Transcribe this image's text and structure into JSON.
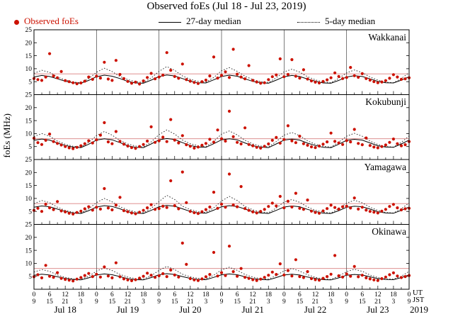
{
  "title": "Observed foEs (Jul 18 - Jul 23, 2019)",
  "legend": {
    "observed": "Observed foEs",
    "median27": "27-day median",
    "median5": "5-day median"
  },
  "ylabel": "foEs (MHz)",
  "axis": {
    "ut_label": "UT",
    "jst_label": "JST",
    "year": "2019"
  },
  "colors": {
    "dot": "#cc1100",
    "line": "#000000",
    "threshold": "#d98080"
  },
  "chart_data": {
    "type": "scatter",
    "title": "Observed foEs (Jul 18 - Jul 23, 2019)",
    "ylabel": "foEs (MHz)",
    "ylim": [
      0,
      25
    ],
    "yticks": [
      5,
      10,
      15,
      20,
      25
    ],
    "xlim": [
      0,
      144
    ],
    "x_tick_step_hours": 6,
    "x_minor_tick_hours": 3,
    "ut_tick_labels": [
      "0",
      "6",
      "12",
      "18"
    ],
    "jst_tick_labels": [
      "9",
      "15",
      "21",
      "3"
    ],
    "day_labels": [
      "Jul 18",
      "Jul 19",
      "Jul 20",
      "Jul 21",
      "Jul 22",
      "Jul 23"
    ],
    "day_boundaries": [
      24,
      48,
      72,
      96,
      120
    ],
    "red_line": 8,
    "panels": [
      {
        "name": "Wakkanai",
        "observed": {
          "x_start": 0,
          "x_step": 1.5,
          "y": [
            6.2,
            5.8,
            5.5,
            6.8,
            15.8,
            7.2,
            6.5,
            8.9,
            5.4,
            5.0,
            4.6,
            4.2,
            4.5,
            5.2,
            6.8,
            5.9,
            7.1,
            6.4,
            12.5,
            6.0,
            5.5,
            13.2,
            7.8,
            6.2,
            5.1,
            4.4,
            4.8,
            4.1,
            5.3,
            6.6,
            8.2,
            6.1,
            6.8,
            7.5,
            16.2,
            9.4,
            7.0,
            6.3,
            11.8,
            5.8,
            5.2,
            4.7,
            4.3,
            5.0,
            5.6,
            7.2,
            14.5,
            6.4,
            7.4,
            8.8,
            6.6,
            17.5,
            7.9,
            6.8,
            6.1,
            11.2,
            5.5,
            4.9,
            4.4,
            4.6,
            5.8,
            6.9,
            7.6,
            13.8,
            6.9,
            7.8,
            13.5,
            7.1,
            6.4,
            9.6,
            6.0,
            5.3,
            4.8,
            4.5,
            5.1,
            5.7,
            6.5,
            8.4,
            7.0,
            6.2,
            6.6,
            10.5,
            7.3,
            6.7,
            8.1,
            6.2,
            5.6,
            5.0,
            4.6,
            4.9,
            5.4,
            6.3,
            7.7,
            6.8,
            5.9,
            6.1,
            6.5
          ]
        },
        "median27": {
          "x_start": 0,
          "x_step": 3,
          "y": [
            6.8,
            7.4,
            7.0,
            6.1,
            5.2,
            4.6,
            4.4,
            5.5,
            6.9,
            7.5,
            7.1,
            6.2,
            5.1,
            4.5,
            4.4,
            5.6,
            7.0,
            7.6,
            7.2,
            6.2,
            5.2,
            4.6,
            4.5,
            5.7,
            7.0,
            7.5,
            7.1,
            6.1,
            5.1,
            4.6,
            4.4,
            5.6,
            6.9,
            7.4,
            7.0,
            6.0,
            5.2,
            4.5,
            4.4,
            5.5,
            6.8,
            7.3,
            7.0,
            6.1,
            5.1,
            4.6,
            4.5,
            5.6,
            6.9
          ]
        },
        "median5": {
          "x_start": 0,
          "x_step": 3,
          "y": [
            8.2,
            9.4,
            8.6,
            6.8,
            5.6,
            4.9,
            4.6,
            6.2,
            8.6,
            10.2,
            8.9,
            7.0,
            5.8,
            5.0,
            4.7,
            6.4,
            9.0,
            10.8,
            9.4,
            7.2,
            5.9,
            5.1,
            4.8,
            6.6,
            9.2,
            10.4,
            9.0,
            7.1,
            5.8,
            5.0,
            4.7,
            6.5,
            8.8,
            9.8,
            8.7,
            6.9,
            5.7,
            4.9,
            4.6,
            6.3,
            8.4,
            9.5,
            8.5,
            6.8,
            5.6,
            4.8,
            4.6,
            6.2,
            8.5
          ]
        }
      },
      {
        "name": "Kokubunji",
        "observed": {
          "x_start": 0,
          "x_step": 1.5,
          "y": [
            8.2,
            6.5,
            5.8,
            7.4,
            9.8,
            6.9,
            6.2,
            5.6,
            5.0,
            4.5,
            4.2,
            4.7,
            5.3,
            6.1,
            7.2,
            6.4,
            7.6,
            9.4,
            14.2,
            6.8,
            6.1,
            10.8,
            7.0,
            5.9,
            5.2,
            4.6,
            4.3,
            5.0,
            5.8,
            7.1,
            12.6,
            6.6,
            7.2,
            8.6,
            6.9,
            15.4,
            7.5,
            6.4,
            9.2,
            5.7,
            5.1,
            4.4,
            4.8,
            5.5,
            6.2,
            7.8,
            6.7,
            11.4,
            8.0,
            7.1,
            18.6,
            8.8,
            6.6,
            6.0,
            12.2,
            5.8,
            5.3,
            4.7,
            4.4,
            5.1,
            6.0,
            7.4,
            8.5,
            6.3,
            7.7,
            13.0,
            7.2,
            6.5,
            9.0,
            6.1,
            5.5,
            4.9,
            4.6,
            5.2,
            5.9,
            6.8,
            10.2,
            7.0,
            6.4,
            5.8,
            7.3,
            6.8,
            11.6,
            6.2,
            5.7,
            8.3,
            5.4,
            4.8,
            4.5,
            5.0,
            5.6,
            6.6,
            7.9,
            6.1,
            5.3,
            5.7,
            6.9
          ]
        },
        "median27": {
          "x_start": 0,
          "x_step": 3,
          "y": [
            7.4,
            7.9,
            7.5,
            6.4,
            5.4,
            4.8,
            4.6,
            5.9,
            7.5,
            8.0,
            7.6,
            6.5,
            5.3,
            4.7,
            4.6,
            6.0,
            7.6,
            8.1,
            7.7,
            6.5,
            5.4,
            4.8,
            4.7,
            6.1,
            7.6,
            8.0,
            7.6,
            6.4,
            5.3,
            4.8,
            4.6,
            6.0,
            7.5,
            7.9,
            7.5,
            6.3,
            5.4,
            4.7,
            4.6,
            5.9,
            7.4,
            7.8,
            7.5,
            6.4,
            5.3,
            4.8,
            4.7,
            6.0,
            7.5
          ]
        },
        "median5": {
          "x_start": 0,
          "x_step": 3,
          "y": [
            8.8,
            10.0,
            9.0,
            7.1,
            5.9,
            5.1,
            4.8,
            6.6,
            9.2,
            10.8,
            9.4,
            7.3,
            6.0,
            5.2,
            4.9,
            6.8,
            9.6,
            11.4,
            9.8,
            7.5,
            6.1,
            5.3,
            5.0,
            7.0,
            9.8,
            11.0,
            9.5,
            7.4,
            6.0,
            5.2,
            4.9,
            6.9,
            9.4,
            10.4,
            9.2,
            7.2,
            5.9,
            5.1,
            4.8,
            6.7,
            9.0,
            10.1,
            9.0,
            7.1,
            5.8,
            5.0,
            4.8,
            6.6,
            9.1
          ]
        }
      },
      {
        "name": "Yamagawa",
        "observed": {
          "x_start": 0,
          "x_step": 1.5,
          "y": [
            5.4,
            6.2,
            5.0,
            7.8,
            6.4,
            5.7,
            8.8,
            5.2,
            4.8,
            4.3,
            4.0,
            4.6,
            5.1,
            6.0,
            6.8,
            5.5,
            6.6,
            5.9,
            13.8,
            6.3,
            5.6,
            7.4,
            10.4,
            5.3,
            4.9,
            4.4,
            4.1,
            4.7,
            5.4,
            6.4,
            7.6,
            5.8,
            6.1,
            7.0,
            6.5,
            16.8,
            7.2,
            6.0,
            20.2,
            8.4,
            5.0,
            4.5,
            4.2,
            4.9,
            5.7,
            6.7,
            12.4,
            6.2,
            7.8,
            6.6,
            19.4,
            7.5,
            6.8,
            14.6,
            6.1,
            5.4,
            4.8,
            4.4,
            5.0,
            5.8,
            6.9,
            8.2,
            7.1,
            10.8,
            6.4,
            8.9,
            6.7,
            12.0,
            6.2,
            5.8,
            9.4,
            5.1,
            4.6,
            4.3,
            5.2,
            6.1,
            7.4,
            6.5,
            5.9,
            6.8,
            7.0,
            6.3,
            10.2,
            5.9,
            6.6,
            5.5,
            5.0,
            4.7,
            4.4,
            5.1,
            5.8,
            6.9,
            7.7,
            6.4,
            5.6,
            6.0,
            6.2
          ]
        },
        "median27": {
          "x_start": 0,
          "x_step": 3,
          "y": [
            6.6,
            7.1,
            6.8,
            5.9,
            5.0,
            4.4,
            4.2,
            5.3,
            6.7,
            7.2,
            6.9,
            6.0,
            4.9,
            4.3,
            4.2,
            5.4,
            6.8,
            7.3,
            7.0,
            6.0,
            5.0,
            4.4,
            4.3,
            5.5,
            6.8,
            7.2,
            6.9,
            5.9,
            4.9,
            4.4,
            4.2,
            5.4,
            6.7,
            7.1,
            6.8,
            5.8,
            5.0,
            4.3,
            4.2,
            5.3,
            6.6,
            7.0,
            6.8,
            5.9,
            4.9,
            4.4,
            4.3,
            5.4,
            6.7
          ]
        },
        "median5": {
          "x_start": 0,
          "x_step": 3,
          "y": [
            8.0,
            9.2,
            8.4,
            6.6,
            5.4,
            4.7,
            4.4,
            6.0,
            8.4,
            10.0,
            8.7,
            6.8,
            5.6,
            4.8,
            4.5,
            6.2,
            8.8,
            11.2,
            9.6,
            7.0,
            5.7,
            4.9,
            4.6,
            6.4,
            9.0,
            10.8,
            9.2,
            6.9,
            5.6,
            4.8,
            4.5,
            6.3,
            8.6,
            9.6,
            8.5,
            6.7,
            5.5,
            4.7,
            4.4,
            6.1,
            8.2,
            9.3,
            8.3,
            6.6,
            5.4,
            4.6,
            4.4,
            6.0,
            8.3
          ]
        }
      },
      {
        "name": "Okinawa",
        "observed": {
          "x_start": 0,
          "x_step": 1.5,
          "y": [
            4.8,
            5.6,
            4.4,
            9.2,
            5.0,
            4.6,
            6.4,
            4.2,
            3.8,
            3.5,
            3.2,
            3.9,
            4.5,
            5.3,
            6.1,
            4.9,
            5.8,
            4.7,
            8.6,
            5.1,
            4.4,
            10.2,
            4.8,
            4.0,
            3.6,
            3.3,
            3.7,
            4.3,
            5.0,
            6.2,
            5.4,
            4.6,
            5.2,
            6.0,
            4.9,
            7.4,
            5.5,
            4.7,
            17.8,
            9.6,
            4.1,
            3.6,
            3.4,
            4.0,
            4.8,
            5.7,
            14.2,
            5.1,
            6.4,
            5.3,
            16.6,
            6.8,
            5.0,
            8.0,
            4.6,
            4.2,
            3.7,
            3.4,
            3.9,
            4.6,
            5.4,
            6.6,
            5.7,
            9.8,
            5.5,
            7.2,
            5.1,
            11.4,
            4.9,
            4.5,
            6.8,
            4.1,
            3.7,
            3.5,
            4.2,
            4.9,
            5.8,
            13.0,
            5.2,
            4.7,
            5.9,
            5.0,
            8.8,
            4.8,
            5.4,
            4.4,
            4.0,
            3.6,
            3.4,
            4.1,
            4.7,
            5.6,
            6.3,
            5.1,
            4.5,
            4.9,
            5.3
          ]
        },
        "median27": {
          "x_start": 0,
          "x_step": 3,
          "y": [
            5.4,
            5.8,
            5.5,
            4.8,
            4.2,
            3.8,
            3.6,
            4.4,
            5.5,
            5.9,
            5.6,
            4.9,
            4.1,
            3.7,
            3.6,
            4.5,
            5.6,
            6.0,
            5.7,
            4.9,
            4.2,
            3.8,
            3.7,
            4.6,
            5.6,
            5.9,
            5.6,
            4.8,
            4.1,
            3.8,
            3.6,
            4.5,
            5.5,
            5.8,
            5.5,
            4.7,
            4.2,
            3.7,
            3.6,
            4.4,
            5.4,
            5.7,
            5.5,
            4.8,
            4.1,
            3.8,
            3.7,
            4.5,
            5.5
          ]
        },
        "median5": {
          "x_start": 0,
          "x_step": 3,
          "y": [
            6.6,
            7.6,
            6.9,
            5.5,
            4.6,
            4.0,
            3.8,
            5.0,
            7.0,
            8.2,
            7.2,
            5.7,
            4.7,
            4.1,
            3.9,
            5.2,
            7.3,
            8.8,
            7.6,
            5.8,
            4.8,
            4.2,
            4.0,
            5.4,
            7.5,
            8.5,
            7.3,
            5.7,
            4.7,
            4.1,
            3.9,
            5.3,
            7.1,
            8.0,
            7.0,
            5.6,
            4.6,
            4.0,
            3.8,
            5.1,
            6.8,
            7.7,
            6.9,
            5.5,
            4.5,
            4.0,
            3.9,
            5.0,
            6.9
          ]
        }
      }
    ]
  }
}
